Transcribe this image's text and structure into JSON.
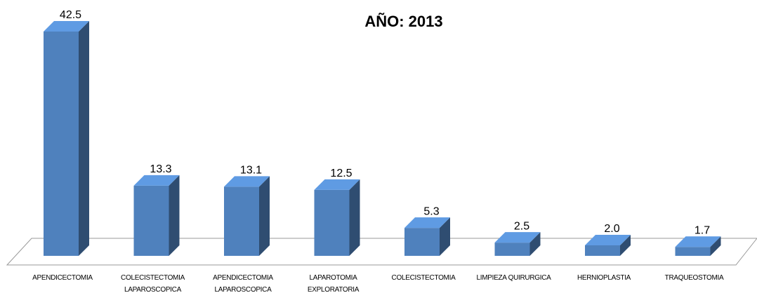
{
  "chart_data": {
    "type": "bar3d",
    "title": "AÑO: 2013",
    "categories": [
      "APENDICECTOMIA",
      "COLECISTECTOMIA LAPAROSCOPICA",
      "APENDICECTOMIA LAPAROSCOPICA",
      "LAPAROTOMIA EXPLORATORIA",
      "COLECISTECTOMIA",
      "LIMPIEZA QUIRURGICA",
      "HERNIOPLASTIA",
      "TRAQUEOSTOMIA"
    ],
    "values": [
      42.5,
      13.3,
      13.1,
      12.5,
      5.3,
      2.5,
      2.0,
      1.7
    ],
    "value_labels": [
      "42.5",
      "13.3",
      "13.1",
      "12.5",
      "5.3",
      "2.5",
      "2.0",
      "1.7"
    ],
    "color": "#4f81bd"
  }
}
